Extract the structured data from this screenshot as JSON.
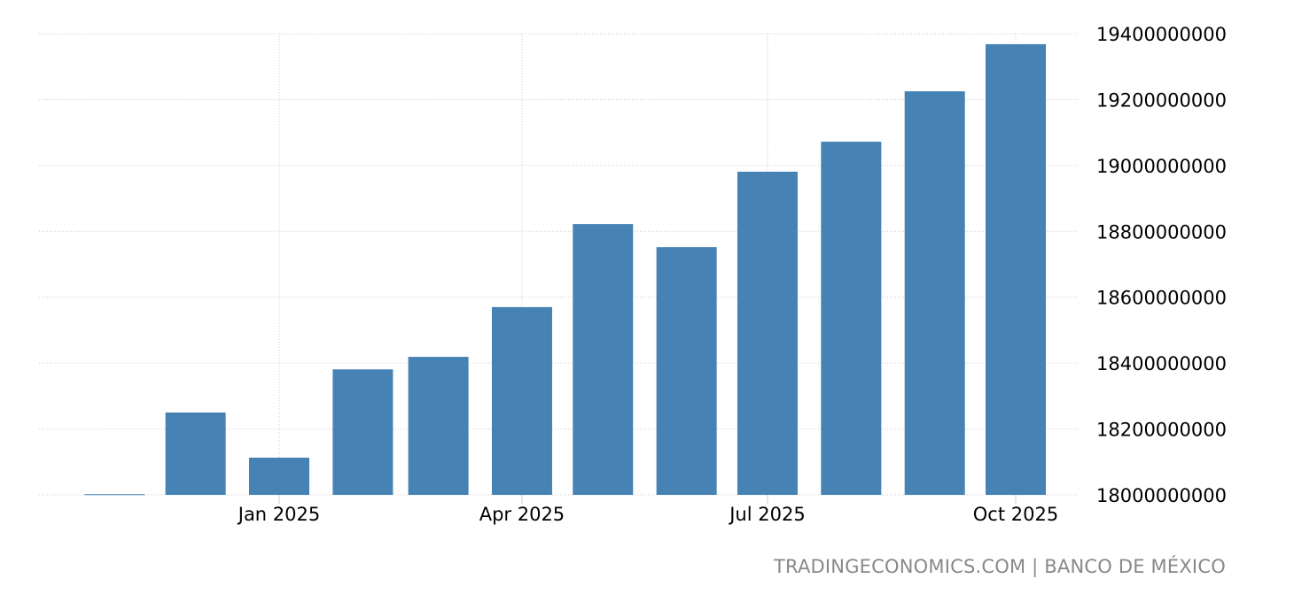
{
  "chart_data": {
    "type": "bar",
    "title": "",
    "xlabel": "",
    "ylabel": "",
    "categories": [
      "2024-11",
      "2024-12",
      "2025-01",
      "2025-02",
      "2025-03",
      "2025-04",
      "2025-05",
      "2025-06",
      "2025-07",
      "2025-08",
      "2025-09",
      "2025-10"
    ],
    "values": [
      18002000000,
      18250000000,
      18113000000,
      18381000000,
      18419000000,
      18570000000,
      18822000000,
      18752000000,
      18981000000,
      19072000000,
      19225000000,
      19368000000
    ],
    "ylim": [
      18000000000,
      19400000000
    ],
    "yticks": [
      "18000000000",
      "18200000000",
      "18400000000",
      "18600000000",
      "18800000000",
      "19000000000",
      "19200000000",
      "19400000000"
    ],
    "xticks": [
      {
        "date": "2025-01",
        "label": "Jan 2025"
      },
      {
        "date": "2025-04",
        "label": "Apr 2025"
      },
      {
        "date": "2025-07",
        "label": "Jul 2025"
      },
      {
        "date": "2025-10",
        "label": "Oct 2025"
      }
    ],
    "grid": true,
    "bar_color": "#4682b4",
    "y_axis_side": "right"
  },
  "source": "TRADINGECONOMICS.COM | BANCO DE MÉXICO"
}
